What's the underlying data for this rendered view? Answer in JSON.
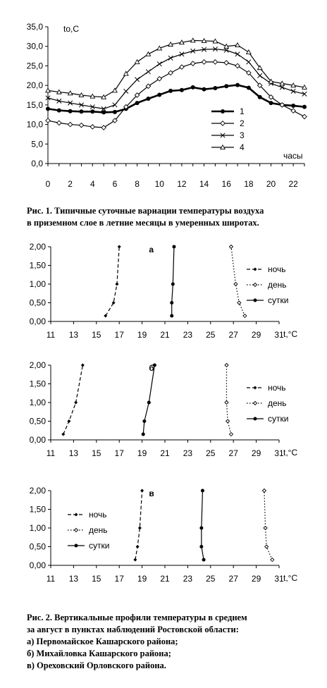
{
  "chart_data": [
    {
      "type": "line",
      "ylabel": "to,C",
      "xlabel": "часы",
      "ylim": [
        0,
        35
      ],
      "yticks": [
        "0,0",
        "5,0",
        "10,0",
        "15,0",
        "20,0",
        "25,0",
        "30,0",
        "35,0"
      ],
      "xlim": [
        0,
        23
      ],
      "xticks": [
        "0",
        "2",
        "4",
        "6",
        "8",
        "10",
        "12",
        "14",
        "16",
        "18",
        "20",
        "22"
      ],
      "x": [
        0,
        1,
        2,
        3,
        4,
        5,
        6,
        7,
        8,
        9,
        10,
        11,
        12,
        13,
        14,
        15,
        16,
        17,
        18,
        19,
        20,
        21,
        22,
        23
      ],
      "legend_position": "right",
      "series": [
        {
          "name": "1",
          "marker": "filled-circle",
          "width": 2.6,
          "values": [
            14.0,
            13.6,
            13.4,
            13.3,
            13.3,
            13.1,
            13.2,
            14.0,
            15.5,
            16.6,
            17.6,
            18.6,
            18.8,
            19.5,
            19.0,
            19.3,
            19.8,
            20.1,
            19.4,
            17.0,
            15.5,
            15.0,
            14.8,
            14.5
          ]
        },
        {
          "name": "2",
          "marker": "open-diamond",
          "width": 1.2,
          "values": [
            11.0,
            10.4,
            10.0,
            9.8,
            9.4,
            9.2,
            11.0,
            14.5,
            17.5,
            19.8,
            21.7,
            23.2,
            24.7,
            25.6,
            26.0,
            26.0,
            25.8,
            25.0,
            23.2,
            20.0,
            17.0,
            15.0,
            13.5,
            12.0
          ]
        },
        {
          "name": "3",
          "marker": "x",
          "width": 1.2,
          "values": [
            16.8,
            16.0,
            15.5,
            15.0,
            14.5,
            14.0,
            15.0,
            18.5,
            21.5,
            23.5,
            25.5,
            27.0,
            28.0,
            28.8,
            29.2,
            29.3,
            29.0,
            28.0,
            26.0,
            22.5,
            20.5,
            19.5,
            18.5,
            17.8
          ]
        },
        {
          "name": "4",
          "marker": "open-triangle",
          "width": 1.2,
          "values": [
            18.7,
            18.3,
            18.0,
            17.5,
            17.2,
            17.0,
            18.7,
            23.0,
            26.0,
            28.0,
            29.5,
            30.5,
            31.0,
            31.5,
            31.4,
            31.3,
            30.0,
            30.3,
            28.5,
            24.5,
            21.0,
            20.5,
            20.0,
            19.5
          ]
        }
      ]
    },
    {
      "type": "line",
      "panel_label": "а",
      "xlabel": "t,°C",
      "xlim": [
        11,
        31
      ],
      "xticks": [
        "11",
        "13",
        "15",
        "17",
        "19",
        "21",
        "23",
        "25",
        "27",
        "29",
        "31"
      ],
      "ylim": [
        0,
        2
      ],
      "yticks": [
        "0,00",
        "0,50",
        "1,00",
        "1,50",
        "2,00"
      ],
      "legend_position": "right",
      "series": [
        {
          "name": "ночь",
          "style": "dash",
          "marker": "filled-diamond",
          "x": [
            15.8,
            16.5,
            16.8,
            17.0
          ],
          "y": [
            0.15,
            0.5,
            1.0,
            2.0
          ]
        },
        {
          "name": "день",
          "style": "dot",
          "marker": "open-diamond",
          "x": [
            28.0,
            27.5,
            27.2,
            26.8
          ],
          "y": [
            0.15,
            0.5,
            1.0,
            2.0
          ]
        },
        {
          "name": "сутки",
          "style": "solid",
          "marker": "filled-circle",
          "x": [
            21.6,
            21.6,
            21.7,
            21.8
          ],
          "y": [
            0.15,
            0.5,
            1.0,
            2.0
          ]
        }
      ]
    },
    {
      "type": "line",
      "panel_label": "б",
      "xlabel": "t,°C",
      "xlim": [
        11,
        31
      ],
      "xticks": [
        "11",
        "13",
        "15",
        "17",
        "19",
        "21",
        "23",
        "25",
        "27",
        "29",
        "31"
      ],
      "ylim": [
        0,
        2
      ],
      "yticks": [
        "0,00",
        "0,50",
        "1,00",
        "1,50",
        "2,00"
      ],
      "legend_position": "right",
      "series": [
        {
          "name": "ночь",
          "style": "dash",
          "marker": "filled-diamond",
          "x": [
            12.1,
            12.6,
            13.2,
            13.8
          ],
          "y": [
            0.15,
            0.5,
            1.0,
            2.0
          ]
        },
        {
          "name": "день",
          "style": "dot",
          "marker": "open-diamond",
          "x": [
            26.8,
            26.5,
            26.4,
            26.4
          ],
          "y": [
            0.15,
            0.5,
            1.0,
            2.0
          ]
        },
        {
          "name": "сутки",
          "style": "solid",
          "marker": "filled-circle",
          "x": [
            19.1,
            19.2,
            19.6,
            20.1
          ],
          "y": [
            0.15,
            0.5,
            1.0,
            2.0
          ]
        }
      ]
    },
    {
      "type": "line",
      "panel_label": "в",
      "xlabel": "t,°C",
      "xlim": [
        11,
        31
      ],
      "xticks": [
        "11",
        "13",
        "15",
        "17",
        "19",
        "21",
        "23",
        "25",
        "27",
        "29",
        "31"
      ],
      "ylim": [
        0,
        2
      ],
      "yticks": [
        "0,00",
        "0,50",
        "1,00",
        "1,50",
        "2,00"
      ],
      "legend_position": "left",
      "series": [
        {
          "name": "ночь",
          "style": "dash",
          "marker": "filled-diamond",
          "x": [
            18.4,
            18.6,
            18.8,
            19.0
          ],
          "y": [
            0.15,
            0.5,
            1.0,
            2.0
          ]
        },
        {
          "name": "день",
          "style": "dot",
          "marker": "open-diamond",
          "x": [
            30.4,
            29.9,
            29.8,
            29.7
          ],
          "y": [
            0.15,
            0.5,
            1.0,
            2.0
          ]
        },
        {
          "name": "сутки",
          "style": "solid",
          "marker": "filled-circle",
          "x": [
            24.4,
            24.2,
            24.2,
            24.3
          ],
          "y": [
            0.15,
            0.5,
            1.0,
            2.0
          ]
        }
      ]
    }
  ],
  "captions": {
    "fig1": [
      "Рис. 1. Типичные суточные вариации температуры воздуха",
      "в приземном слое в летние месяцы в умеренных широтах."
    ],
    "fig2": [
      "Рис. 2. Вертикальные профили температуры в среднем",
      "за август в пунктах наблюдений Ростовской области:",
      "а) Первомайское Кашарского района;",
      "б) Михайловка Кашарского района;",
      "в) Ореховский Орловского района."
    ]
  }
}
